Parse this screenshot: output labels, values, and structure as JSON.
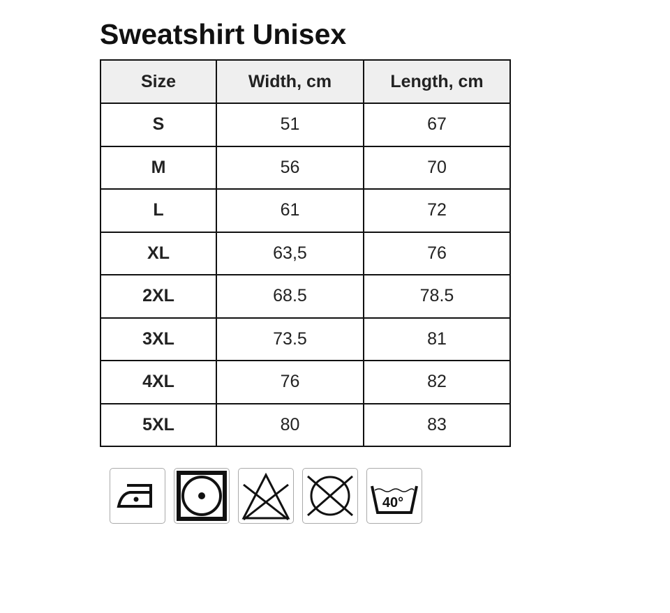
{
  "title": "Sweatshirt Unisex",
  "table": {
    "headers": [
      "Size",
      "Width, cm",
      "Length, cm"
    ],
    "rows": [
      [
        "S",
        "51",
        "67"
      ],
      [
        "M",
        "56",
        "70"
      ],
      [
        "L",
        "61",
        "72"
      ],
      [
        "XL",
        "63,5",
        "76"
      ],
      [
        "2XL",
        "68.5",
        "78.5"
      ],
      [
        "3XL",
        "73.5",
        "81"
      ],
      [
        "4XL",
        "76",
        "82"
      ],
      [
        "5XL",
        "80",
        "83"
      ]
    ]
  },
  "care_icons": [
    {
      "name": "iron-low-heat-icon"
    },
    {
      "name": "tumble-dry-low-icon"
    },
    {
      "name": "do-not-bleach-icon"
    },
    {
      "name": "do-not-dry-clean-icon"
    },
    {
      "name": "wash-40-icon",
      "label": "40°"
    }
  ]
}
